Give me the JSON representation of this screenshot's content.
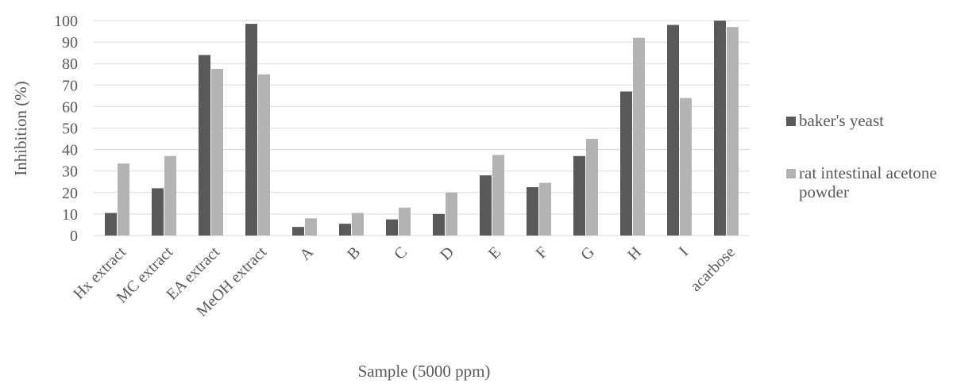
{
  "colors": {
    "series1": "#595959",
    "series2": "#b3b3b3",
    "grid": "#d9d9d9",
    "text": "#595959"
  },
  "chart_data": {
    "type": "bar",
    "categories": [
      "Hx extract",
      "MC extract",
      "EA extract",
      "MeOH extract",
      "A",
      "B",
      "C",
      "D",
      "E",
      "F",
      "G",
      "H",
      "I",
      "acarbose"
    ],
    "series": [
      {
        "name": "baker's yeast",
        "values": [
          10.5,
          22,
          84,
          98.5,
          4,
          5.5,
          7.5,
          10,
          28,
          22.5,
          37,
          67,
          98,
          100
        ]
      },
      {
        "name": "rat intestinal acetone powder",
        "values": [
          33.5,
          37,
          77.5,
          75,
          8,
          10.5,
          13,
          20,
          37.5,
          24.5,
          45,
          92,
          64,
          97
        ]
      }
    ],
    "xlabel": "Sample (5000 ppm)",
    "ylabel": "Inhibition (%)",
    "ylim": [
      0,
      100
    ],
    "yticks": [
      "0",
      "10",
      "20",
      "30",
      "40",
      "50",
      "60",
      "70",
      "80",
      "90",
      "100"
    ],
    "grid": true,
    "legend_position": "right"
  }
}
